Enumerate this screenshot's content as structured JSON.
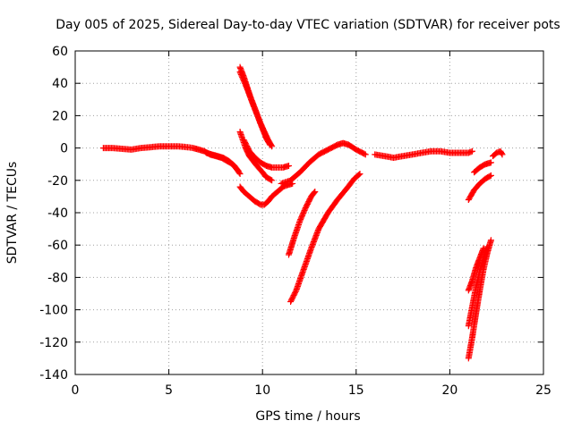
{
  "chart_data": {
    "type": "scatter",
    "title": "Day 005 of 2025, Sidereal Day-to-day VTEC variation (SDTVAR) for receiver pots",
    "xlabel": "GPS time / hours",
    "ylabel": "SDTVAR / TECUs",
    "xlim": [
      0,
      25
    ],
    "ylim": [
      -140,
      60
    ],
    "xticks": [
      0,
      5,
      10,
      15,
      20,
      25
    ],
    "yticks": [
      -140,
      -120,
      -100,
      -80,
      -60,
      -40,
      -20,
      0,
      20,
      40,
      60
    ],
    "grid": true,
    "legend": "none",
    "marker": "plus",
    "color": "#ff0000",
    "series": [
      {
        "points": [
          [
            1.5,
            0
          ],
          [
            2,
            0
          ],
          [
            2.5,
            -0.5
          ],
          [
            3,
            -1
          ],
          [
            3.5,
            0
          ],
          [
            4,
            0.5
          ],
          [
            4.5,
            1
          ],
          [
            5,
            1
          ],
          [
            5.5,
            1
          ],
          [
            6,
            0.5
          ],
          [
            6.3,
            0
          ],
          [
            6.6,
            -1
          ],
          [
            6.9,
            -2
          ],
          [
            7.2,
            -4
          ],
          [
            7.5,
            -5
          ],
          [
            7.8,
            -6
          ],
          [
            8.1,
            -8
          ],
          [
            8.4,
            -10
          ],
          [
            8.7,
            -14
          ]
        ]
      },
      {
        "points": [
          [
            7.0,
            -3
          ],
          [
            7.3,
            -4
          ],
          [
            7.6,
            -5
          ],
          [
            7.9,
            -6
          ],
          [
            8.2,
            -8
          ],
          [
            8.5,
            -11
          ],
          [
            8.8,
            -16
          ]
        ]
      },
      {
        "points": [
          [
            8.8,
            -24
          ],
          [
            9.0,
            -27
          ],
          [
            9.3,
            -30
          ],
          [
            9.6,
            -33
          ],
          [
            9.9,
            -35
          ],
          [
            10.1,
            -35
          ],
          [
            10.3,
            -33
          ],
          [
            10.5,
            -30
          ],
          [
            10.7,
            -28
          ],
          [
            10.9,
            -26
          ],
          [
            11.1,
            -24
          ],
          [
            11.3,
            -23
          ],
          [
            11.6,
            -22
          ]
        ]
      },
      {
        "points": [
          [
            8.8,
            50
          ],
          [
            9.0,
            44
          ],
          [
            9.2,
            37
          ],
          [
            9.4,
            30
          ],
          [
            9.6,
            24
          ],
          [
            9.8,
            18
          ],
          [
            10.0,
            12
          ],
          [
            10.2,
            6
          ],
          [
            10.4,
            2
          ]
        ]
      },
      {
        "points": [
          [
            8.8,
            47
          ],
          [
            9.1,
            39
          ],
          [
            9.3,
            33
          ],
          [
            9.5,
            27
          ],
          [
            9.7,
            21
          ],
          [
            9.9,
            15
          ],
          [
            10.1,
            10
          ],
          [
            10.3,
            5
          ],
          [
            10.5,
            1
          ]
        ]
      },
      {
        "points": [
          [
            8.8,
            10
          ],
          [
            9.1,
            0
          ],
          [
            9.3,
            -5
          ],
          [
            9.5,
            -8
          ],
          [
            9.7,
            -11
          ],
          [
            10.0,
            -15
          ],
          [
            10.2,
            -18
          ],
          [
            10.5,
            -20
          ]
        ]
      },
      {
        "points": [
          [
            9.0,
            5
          ],
          [
            9.3,
            -2
          ],
          [
            9.6,
            -6
          ],
          [
            9.9,
            -9
          ],
          [
            10.2,
            -11
          ],
          [
            10.5,
            -12
          ],
          [
            10.8,
            -12
          ],
          [
            11.1,
            -12
          ],
          [
            11.4,
            -11
          ]
        ]
      },
      {
        "points": [
          [
            11.0,
            -22
          ],
          [
            11.5,
            -20
          ],
          [
            12.0,
            -15
          ],
          [
            12.5,
            -9
          ],
          [
            13.0,
            -4
          ],
          [
            13.5,
            -1
          ],
          [
            14.0,
            2
          ],
          [
            14.3,
            3
          ],
          [
            14.6,
            2
          ],
          [
            15.0,
            -1
          ],
          [
            15.5,
            -4
          ]
        ]
      },
      {
        "points": [
          [
            11.4,
            -66
          ],
          [
            11.7,
            -55
          ],
          [
            12.0,
            -45
          ],
          [
            12.3,
            -37
          ],
          [
            12.6,
            -30
          ],
          [
            12.8,
            -27
          ]
        ]
      },
      {
        "points": [
          [
            11.5,
            -95
          ],
          [
            11.8,
            -88
          ],
          [
            12.2,
            -75
          ],
          [
            12.6,
            -62
          ],
          [
            13.0,
            -50
          ],
          [
            13.5,
            -40
          ],
          [
            14.0,
            -32
          ],
          [
            14.5,
            -25
          ],
          [
            14.9,
            -19
          ],
          [
            15.2,
            -16
          ]
        ]
      },
      {
        "points": [
          [
            16.0,
            -4
          ],
          [
            16.5,
            -5
          ],
          [
            17.0,
            -6
          ],
          [
            17.5,
            -5
          ],
          [
            18.0,
            -4
          ],
          [
            18.5,
            -3
          ],
          [
            19.0,
            -2
          ],
          [
            19.5,
            -2
          ],
          [
            20.0,
            -3
          ],
          [
            20.5,
            -3
          ],
          [
            21.0,
            -3
          ],
          [
            21.2,
            -2
          ]
        ]
      },
      {
        "points": [
          [
            22.3,
            -5
          ],
          [
            22.5,
            -3
          ],
          [
            22.7,
            -2
          ],
          [
            22.8,
            -4
          ]
        ]
      },
      {
        "points": [
          [
            21.0,
            -32
          ],
          [
            21.3,
            -26
          ],
          [
            21.6,
            -22
          ],
          [
            21.9,
            -19
          ],
          [
            22.2,
            -17
          ]
        ]
      },
      {
        "points": [
          [
            21.3,
            -15
          ],
          [
            21.6,
            -12
          ],
          [
            21.9,
            -10
          ],
          [
            22.2,
            -9
          ]
        ]
      },
      {
        "points": [
          [
            21.0,
            -130
          ],
          [
            21.2,
            -117
          ],
          [
            21.4,
            -102
          ],
          [
            21.6,
            -88
          ],
          [
            21.8,
            -75
          ],
          [
            22.0,
            -65
          ],
          [
            22.2,
            -57
          ]
        ]
      },
      {
        "points": [
          [
            21.0,
            -110
          ],
          [
            21.2,
            -98
          ],
          [
            21.4,
            -86
          ],
          [
            21.6,
            -76
          ],
          [
            21.8,
            -68
          ],
          [
            22.0,
            -61
          ]
        ]
      },
      {
        "points": [
          [
            21.0,
            -88
          ],
          [
            21.2,
            -82
          ],
          [
            21.4,
            -74
          ],
          [
            21.6,
            -68
          ],
          [
            21.8,
            -62
          ]
        ]
      }
    ]
  }
}
